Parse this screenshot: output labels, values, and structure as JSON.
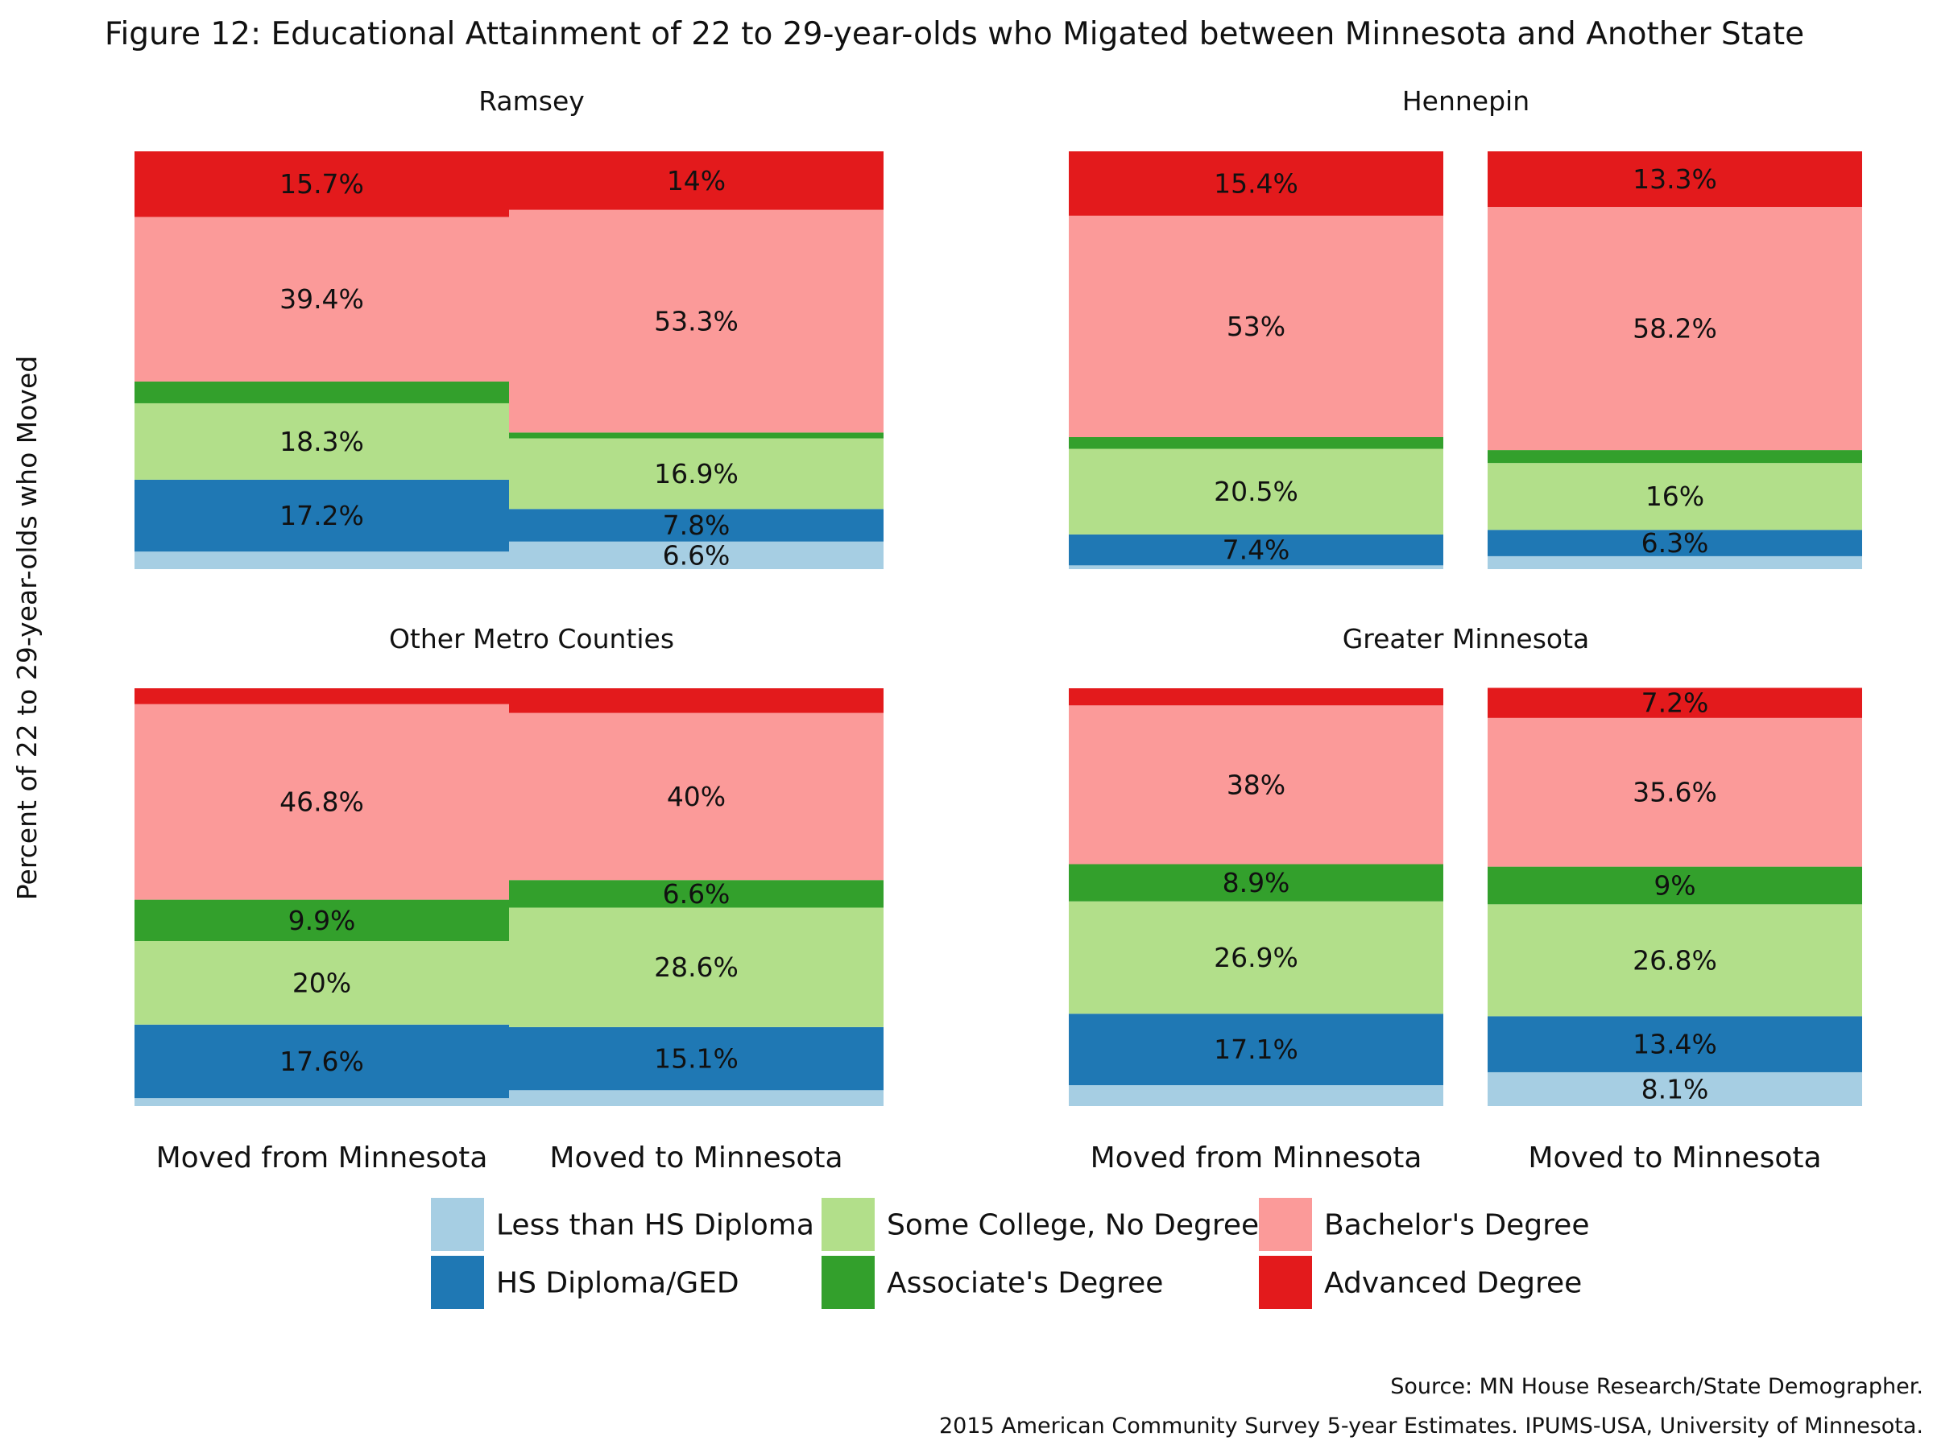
{
  "chart_data": {
    "type": "bar",
    "stacked": true,
    "title": "Figure 12: Educational Attainment of 22 to 29-year-olds who Migated between Minnesota and Another State",
    "ylabel": "Percent of 22 to 29-year-olds who Moved",
    "xlabel": "",
    "ylim": [
      0,
      100
    ],
    "grid": false,
    "legend_position": "bottom",
    "categories": [
      "Moved from Minnesota",
      "Moved to Minnesota"
    ],
    "legend": [
      {
        "name": "Less than HS Diploma",
        "color": "#a6cee3"
      },
      {
        "name": "Some College, No Degree",
        "color": "#b2df8a"
      },
      {
        "name": "Bachelor's Degree",
        "color": "#fb9a99"
      },
      {
        "name": "HS Diploma/GED",
        "color": "#1f78b4"
      },
      {
        "name": "Associate's Degree",
        "color": "#33a02c"
      },
      {
        "name": "Advanced Degree",
        "color": "#e31a1c"
      }
    ],
    "stack_order": [
      "Less than HS Diploma",
      "HS Diploma/GED",
      "Some College, No Degree",
      "Associate's Degree",
      "Bachelor's Degree",
      "Advanced Degree"
    ],
    "panels": [
      {
        "title": "Ramsey",
        "bars": [
          {
            "category": "Moved from Minnesota",
            "values": [
              4.2,
              17.2,
              18.3,
              5.2,
              39.4,
              15.7
            ],
            "labels": [
              "",
              "17.2%",
              "18.3%",
              "",
              "39.4%",
              "15.7%"
            ]
          },
          {
            "category": "Moved to Minnesota",
            "values": [
              6.6,
              7.8,
              16.9,
              1.4,
              53.3,
              14.0
            ],
            "labels": [
              "6.6%",
              "7.8%",
              "16.9%",
              "",
              "53.3%",
              "14%"
            ]
          }
        ]
      },
      {
        "title": "Hennepin",
        "bars": [
          {
            "category": "Moved from Minnesota",
            "values": [
              0.9,
              7.4,
              20.5,
              2.8,
              53.0,
              15.4
            ],
            "labels": [
              "",
              "7.4%",
              "20.5%",
              "",
              "53%",
              "15.4%"
            ]
          },
          {
            "category": "Moved to Minnesota",
            "values": [
              3.1,
              6.3,
              16.0,
              3.1,
              58.2,
              13.3
            ],
            "labels": [
              "",
              "6.3%",
              "16%",
              "",
              "58.2%",
              "13.3%"
            ]
          }
        ]
      },
      {
        "title": "Other Metro Counties",
        "bars": [
          {
            "category": "Moved from Minnesota",
            "values": [
              1.9,
              17.6,
              20.0,
              9.9,
              46.8,
              3.8
            ],
            "labels": [
              "",
              "17.6%",
              "20%",
              "9.9%",
              "46.8%",
              ""
            ]
          },
          {
            "category": "Moved to Minnesota",
            "values": [
              3.8,
              15.1,
              28.6,
              6.6,
              40.0,
              5.9
            ],
            "labels": [
              "",
              "15.1%",
              "28.6%",
              "6.6%",
              "40%",
              ""
            ]
          }
        ]
      },
      {
        "title": "Greater Minnesota",
        "bars": [
          {
            "category": "Moved from Minnesota",
            "values": [
              5.0,
              17.1,
              26.9,
              8.9,
              38.0,
              4.1
            ],
            "labels": [
              "",
              "17.1%",
              "26.9%",
              "8.9%",
              "38%",
              ""
            ]
          },
          {
            "category": "Moved to Minnesota",
            "values": [
              8.1,
              13.4,
              26.8,
              9.0,
              35.6,
              7.2
            ],
            "labels": [
              "8.1%",
              "13.4%",
              "26.8%",
              "9%",
              "35.6%",
              "7.2%"
            ]
          }
        ]
      }
    ],
    "source_lines": [
      "Source: MN House Research/State Demographer.",
      "2015 American Community Survey 5-year Estimates. IPUMS-USA, University of Minnesota."
    ]
  }
}
